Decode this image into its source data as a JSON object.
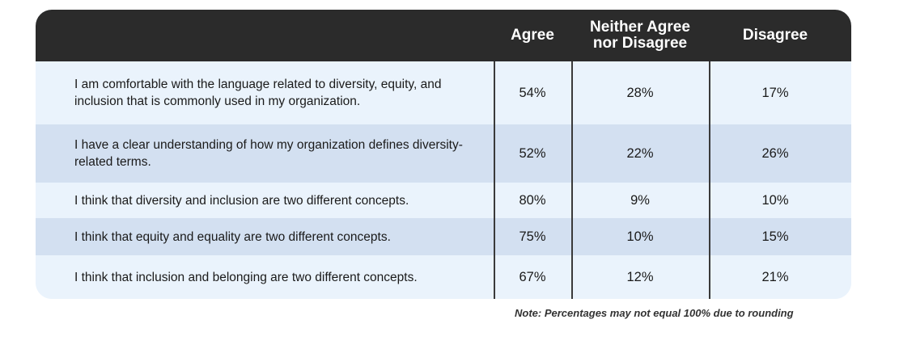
{
  "chart_data": {
    "type": "table",
    "columns": [
      "",
      "Agree",
      "Neither Agree nor Disagree",
      "Disagree"
    ],
    "rows": [
      {
        "statement": "I am comfortable with the language related to diversity, equity, and inclusion that is commonly used in my organization.",
        "agree": "54%",
        "neither": "28%",
        "disagree": "17%"
      },
      {
        "statement": "I have a clear understanding of how my organization defines diversity-related terms.",
        "agree": "52%",
        "neither": "22%",
        "disagree": "26%"
      },
      {
        "statement": "I think that diversity and inclusion are two different concepts.",
        "agree": "80%",
        "neither": "9%",
        "disagree": "10%"
      },
      {
        "statement": "I think that equity and equality are two different concepts.",
        "agree": "75%",
        "neither": "10%",
        "disagree": "15%"
      },
      {
        "statement": "I think that inclusion and belonging are two different concepts.",
        "agree": "67%",
        "neither": "12%",
        "disagree": "21%"
      }
    ],
    "note": "Note: Percentages may not equal 100% due to rounding"
  },
  "colors": {
    "header_bg": "#2b2b2b",
    "row_light": "#eaf3fc",
    "row_dark": "#d3e0f1",
    "divider": "#3a3a3a"
  }
}
